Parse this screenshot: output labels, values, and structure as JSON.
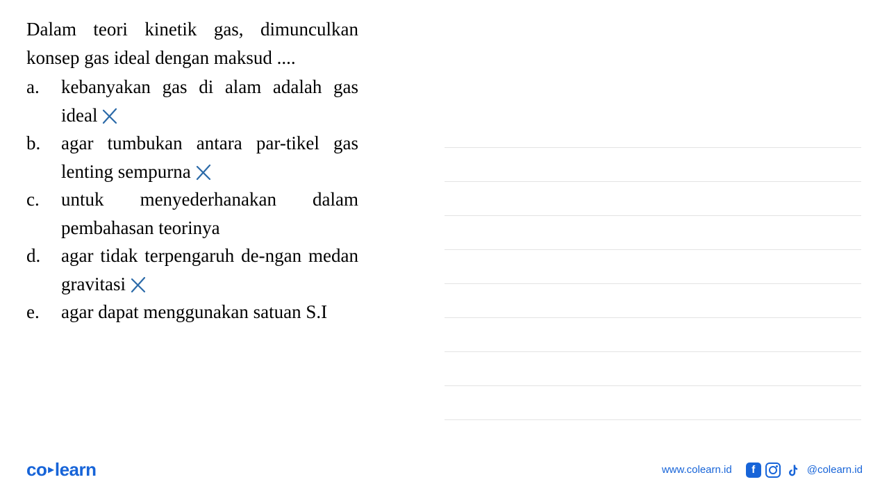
{
  "question": {
    "text": "Dalam teori kinetik gas, dimunculkan konsep gas ideal dengan maksud ....",
    "options": [
      {
        "letter": "a.",
        "text": "kebanyakan gas di alam adalah gas ideal",
        "marked": true
      },
      {
        "letter": "b.",
        "text": "agar tumbukan antara par-tikel gas lenting sempurna",
        "marked": true
      },
      {
        "letter": "c.",
        "text": "untuk menyederhanakan dalam pembahasan teorinya",
        "marked": false
      },
      {
        "letter": "d.",
        "text": "agar tidak terpengaruh de-ngan medan gravitasi",
        "marked": true
      },
      {
        "letter": "e.",
        "text": "agar dapat menggunakan satuan S.I",
        "marked": false
      }
    ]
  },
  "styling": {
    "text_color": "#000000",
    "x_mark_color": "#2b6aa8",
    "brand_color": "#1764d8",
    "line_color": "#e3e3e3",
    "background_color": "#ffffff",
    "question_font_size": 27
  },
  "lines": {
    "count": 9
  },
  "footer": {
    "logo_co": "co",
    "logo_learn": "learn",
    "website": "www.colearn.id",
    "handle": "@colearn.id"
  }
}
